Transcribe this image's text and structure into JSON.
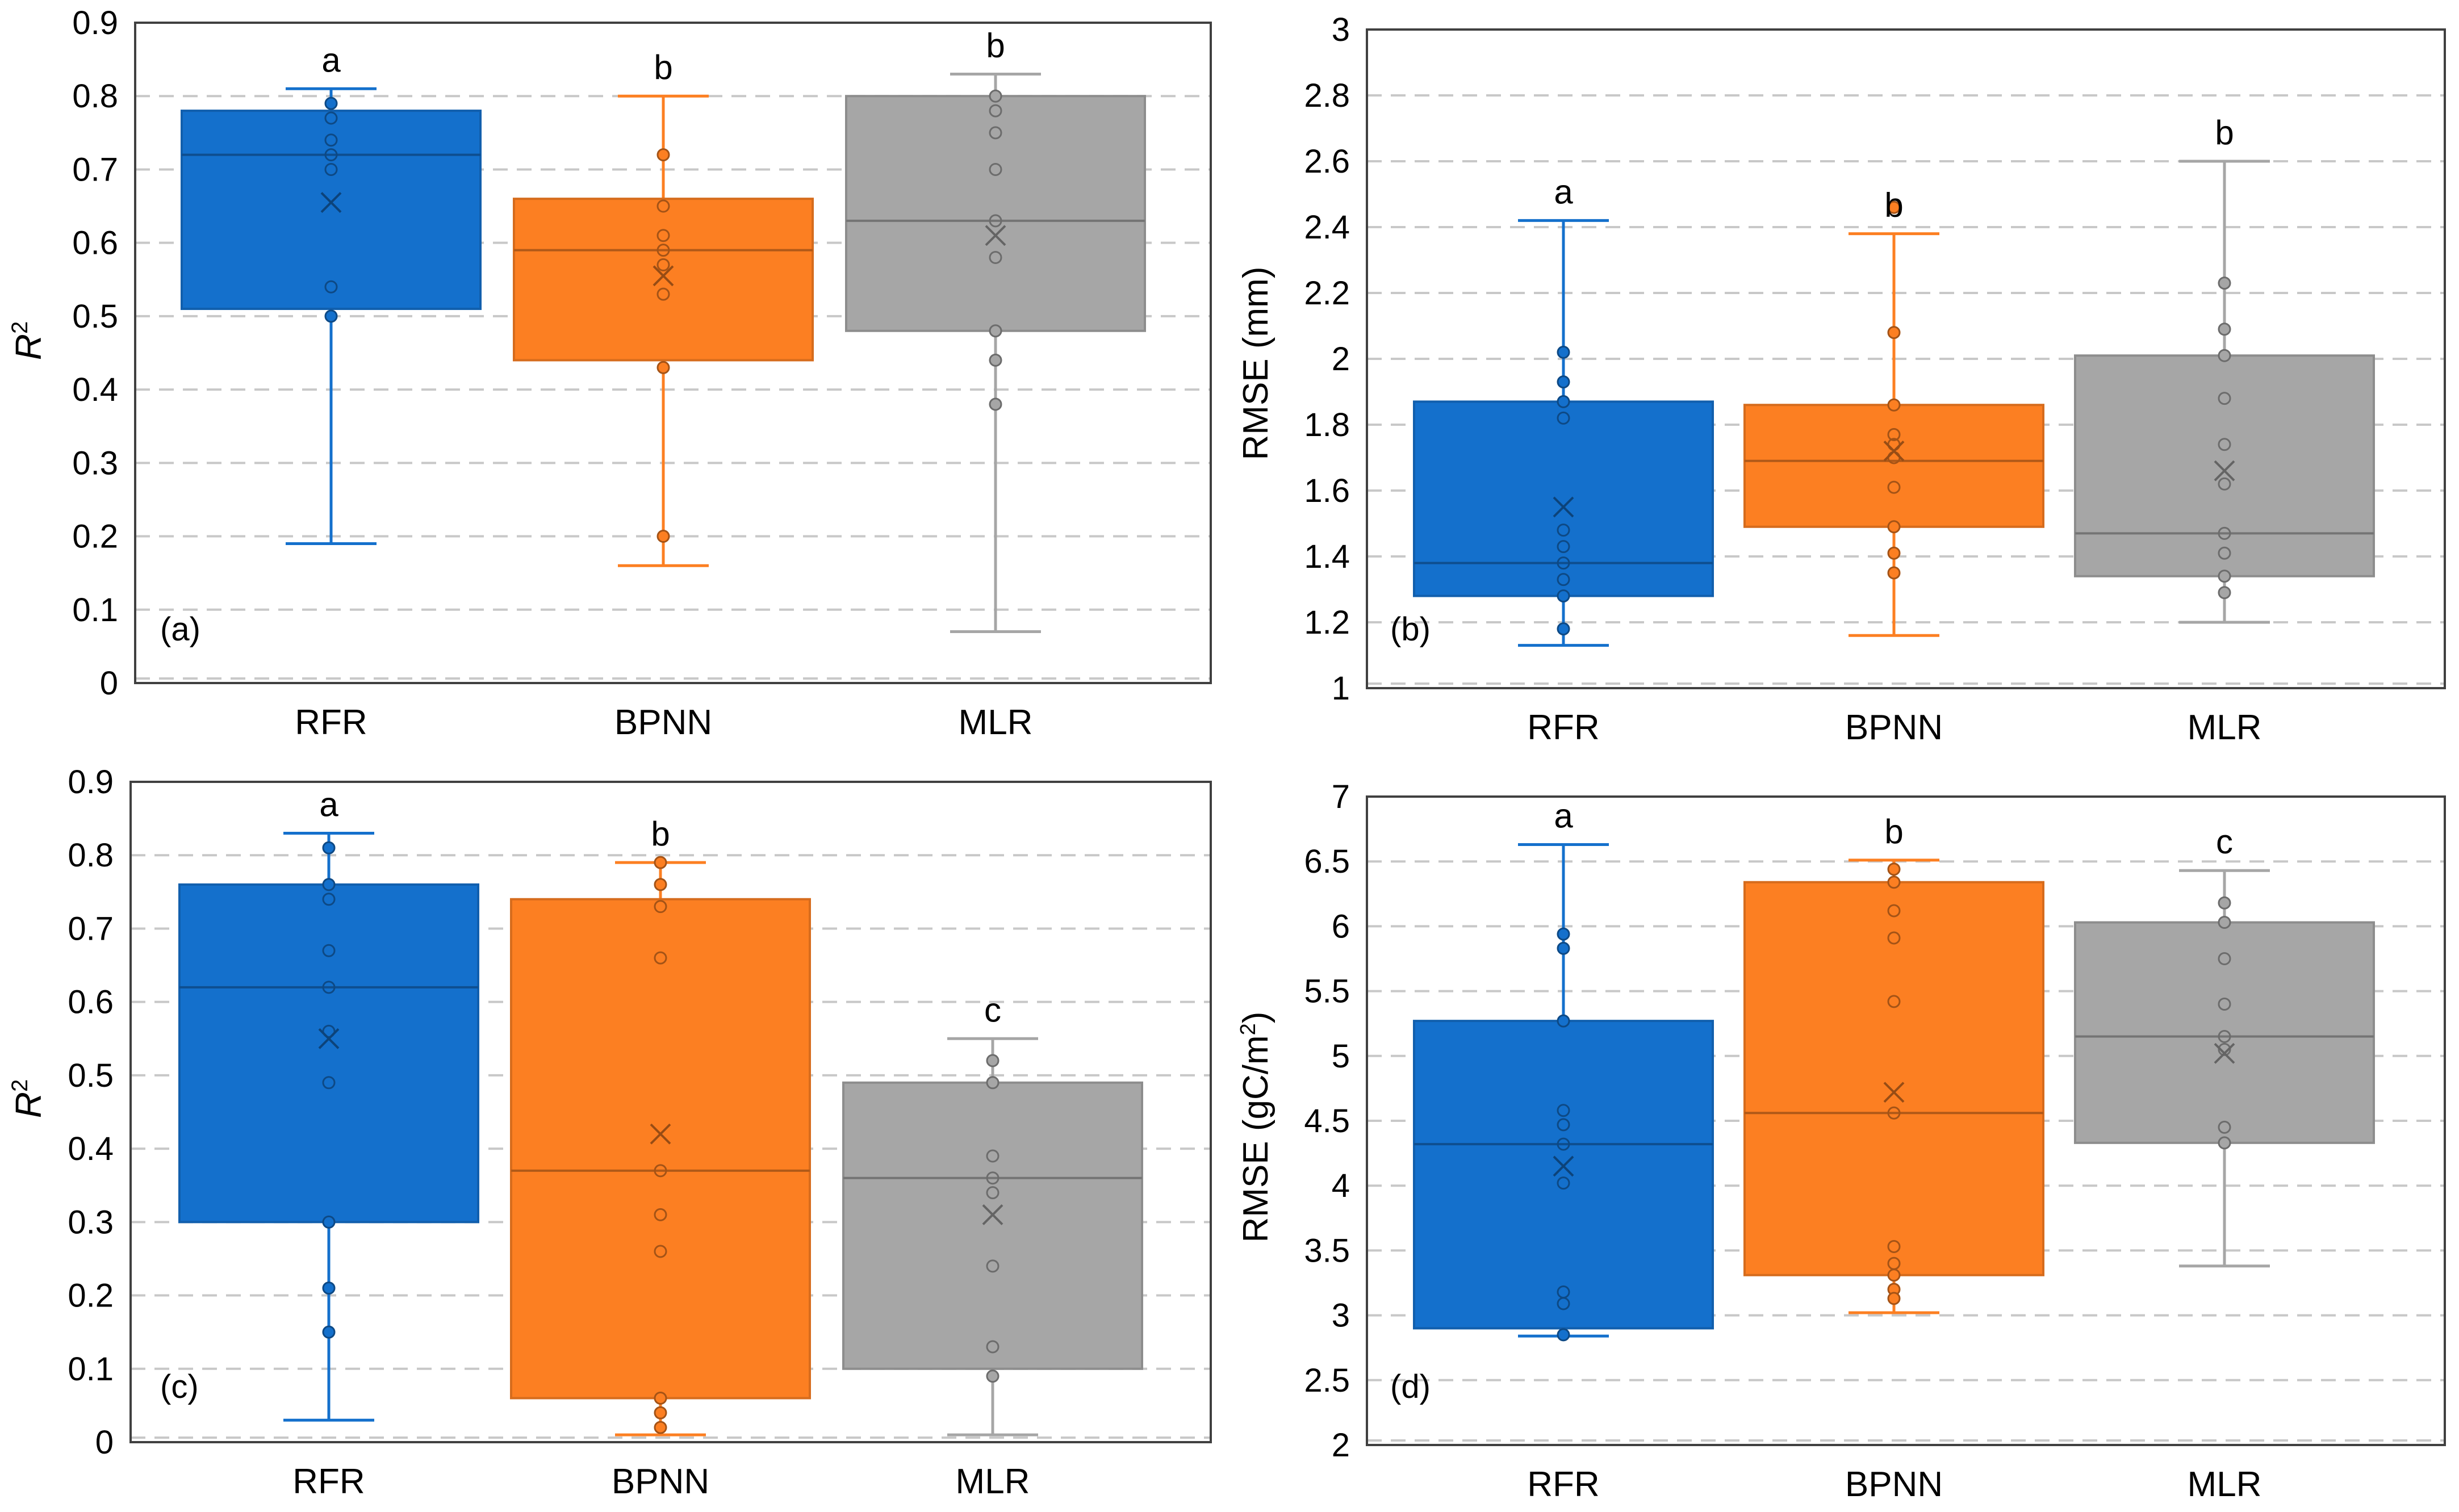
{
  "chart_data": [
    {
      "type": "box",
      "panel_label": "(a)",
      "title": "",
      "xlabel": "",
      "ylabel": "R",
      "ylabel_superscript": "2",
      "ylim": [
        0,
        0.9
      ],
      "yticks": [
        0,
        0.1,
        0.2,
        0.3,
        0.4,
        0.5,
        0.6,
        0.7,
        0.8,
        0.9
      ],
      "ytick_labels": [
        "0",
        "0.1",
        "0.2",
        "0.3",
        "0.4",
        "0.5",
        "0.6",
        "0.7",
        "0.8",
        "0.9"
      ],
      "grid": true,
      "categories": [
        "RFR",
        "BPNN",
        "MLR"
      ],
      "series": [
        {
          "name": "RFR",
          "color": "#1470cc",
          "q1": 0.51,
          "median": 0.72,
          "q3": 0.78,
          "whisker_low": 0.19,
          "whisker_high": 0.81,
          "mean": 0.655,
          "significance": "a",
          "points": [
            0.79,
            0.77,
            0.74,
            0.72,
            0.7,
            0.54,
            0.5
          ]
        },
        {
          "name": "BPNN",
          "color": "#fc7f22",
          "q1": 0.44,
          "median": 0.59,
          "q3": 0.66,
          "whisker_low": 0.16,
          "whisker_high": 0.8,
          "mean": 0.555,
          "significance": "b",
          "points": [
            0.72,
            0.65,
            0.61,
            0.59,
            0.57,
            0.53,
            0.43,
            0.2
          ]
        },
        {
          "name": "MLR",
          "color": "#a6a6a6",
          "q1": 0.48,
          "median": 0.63,
          "q3": 0.8,
          "whisker_low": 0.07,
          "whisker_high": 0.83,
          "mean": 0.61,
          "significance": "b",
          "points": [
            0.8,
            0.78,
            0.75,
            0.7,
            0.63,
            0.58,
            0.48,
            0.44,
            0.38
          ]
        }
      ]
    },
    {
      "type": "box",
      "panel_label": "(b)",
      "title": "",
      "xlabel": "",
      "ylabel": "RMSE (mm)",
      "ylabel_superscript": "",
      "ylim": [
        1,
        3
      ],
      "yticks": [
        1,
        1.2,
        1.4,
        1.6,
        1.8,
        2,
        2.2,
        2.4,
        2.6,
        2.8,
        3
      ],
      "ytick_labels": [
        "1",
        "1.2",
        "1.4",
        "1.6",
        "1.8",
        "2",
        "2.2",
        "2.4",
        "2.6",
        "2.8",
        "3"
      ],
      "grid": true,
      "categories": [
        "RFR",
        "BPNN",
        "MLR"
      ],
      "series": [
        {
          "name": "RFR",
          "color": "#1470cc",
          "q1": 1.28,
          "median": 1.38,
          "q3": 1.87,
          "whisker_low": 1.13,
          "whisker_high": 2.42,
          "mean": 1.55,
          "significance": "a",
          "points": [
            2.02,
            1.93,
            1.87,
            1.82,
            1.48,
            1.43,
            1.38,
            1.33,
            1.28,
            1.18
          ]
        },
        {
          "name": "BPNN",
          "color": "#fc7f22",
          "q1": 1.49,
          "median": 1.69,
          "q3": 1.86,
          "whisker_low": 1.16,
          "whisker_high": 2.38,
          "mean": 1.72,
          "significance": "b",
          "points": [
            2.46,
            2.08,
            1.86,
            1.77,
            1.74,
            1.7,
            1.61,
            1.49,
            1.41,
            1.35
          ]
        },
        {
          "name": "MLR",
          "color": "#a6a6a6",
          "q1": 1.34,
          "median": 1.47,
          "q3": 2.01,
          "whisker_low": 1.2,
          "whisker_high": 2.6,
          "mean": 1.66,
          "significance": "b",
          "points": [
            2.23,
            2.09,
            2.01,
            1.88,
            1.74,
            1.62,
            1.47,
            1.41,
            1.34,
            1.29
          ]
        }
      ]
    },
    {
      "type": "box",
      "panel_label": "(c)",
      "title": "",
      "xlabel": "",
      "ylabel": "R",
      "ylabel_superscript": "2",
      "ylim": [
        0,
        0.9
      ],
      "yticks": [
        0,
        0.1,
        0.2,
        0.3,
        0.4,
        0.5,
        0.6,
        0.7,
        0.8,
        0.9
      ],
      "ytick_labels": [
        "0",
        "0.1",
        "0.2",
        "0.3",
        "0.4",
        "0.5",
        "0.6",
        "0.7",
        "0.8",
        "0.9"
      ],
      "grid": true,
      "categories": [
        "RFR",
        "BPNN",
        "MLR"
      ],
      "series": [
        {
          "name": "RFR",
          "color": "#1470cc",
          "q1": 0.3,
          "median": 0.62,
          "q3": 0.76,
          "whisker_low": 0.03,
          "whisker_high": 0.83,
          "mean": 0.55,
          "significance": "a",
          "points": [
            0.81,
            0.76,
            0.74,
            0.67,
            0.62,
            0.56,
            0.49,
            0.3,
            0.21,
            0.15
          ]
        },
        {
          "name": "BPNN",
          "color": "#fc7f22",
          "q1": 0.06,
          "median": 0.37,
          "q3": 0.74,
          "whisker_low": 0.01,
          "whisker_high": 0.79,
          "mean": 0.42,
          "significance": "b",
          "points": [
            0.79,
            0.76,
            0.73,
            0.66,
            0.37,
            0.31,
            0.26,
            0.06,
            0.04,
            0.02
          ]
        },
        {
          "name": "MLR",
          "color": "#a6a6a6",
          "q1": 0.1,
          "median": 0.36,
          "q3": 0.49,
          "whisker_low": 0.01,
          "whisker_high": 0.55,
          "mean": 0.31,
          "significance": "c",
          "points": [
            0.52,
            0.49,
            0.39,
            0.36,
            0.34,
            0.24,
            0.13,
            0.09
          ]
        }
      ]
    },
    {
      "type": "box",
      "panel_label": "(d)",
      "title": "",
      "xlabel": "",
      "ylabel": "RMSE (gC/m",
      "ylabel_superscript": "2",
      "ylabel_suffix": ")",
      "ylim": [
        2,
        7
      ],
      "yticks": [
        2,
        2.5,
        3,
        3.5,
        4,
        4.5,
        5,
        5.5,
        6,
        6.5,
        7
      ],
      "ytick_labels": [
        "2",
        "2.5",
        "3",
        "3.5",
        "4",
        "4.5",
        "5",
        "5.5",
        "6",
        "6.5",
        "7"
      ],
      "grid": true,
      "categories": [
        "RFR",
        "BPNN",
        "MLR"
      ],
      "series": [
        {
          "name": "RFR",
          "color": "#1470cc",
          "q1": 2.9,
          "median": 4.32,
          "q3": 5.27,
          "whisker_low": 2.84,
          "whisker_high": 6.63,
          "mean": 4.15,
          "significance": "a",
          "points": [
            5.94,
            5.83,
            5.27,
            4.58,
            4.47,
            4.32,
            4.02,
            3.18,
            3.09,
            2.85
          ]
        },
        {
          "name": "BPNN",
          "color": "#fc7f22",
          "q1": 3.31,
          "median": 4.56,
          "q3": 6.34,
          "whisker_low": 3.02,
          "whisker_high": 6.51,
          "mean": 4.72,
          "significance": "b",
          "points": [
            6.44,
            6.34,
            6.12,
            5.91,
            5.42,
            4.56,
            3.53,
            3.4,
            3.31,
            3.2,
            3.13
          ]
        },
        {
          "name": "MLR",
          "color": "#a6a6a6",
          "q1": 4.33,
          "median": 5.15,
          "q3": 6.03,
          "whisker_low": 3.38,
          "whisker_high": 6.43,
          "mean": 5.02,
          "significance": "c",
          "points": [
            6.18,
            6.03,
            5.75,
            5.4,
            5.15,
            5.05,
            4.45,
            4.33
          ]
        }
      ]
    }
  ],
  "style": {
    "grid_color": "#c8c8c8",
    "axis_color": "#404040"
  }
}
